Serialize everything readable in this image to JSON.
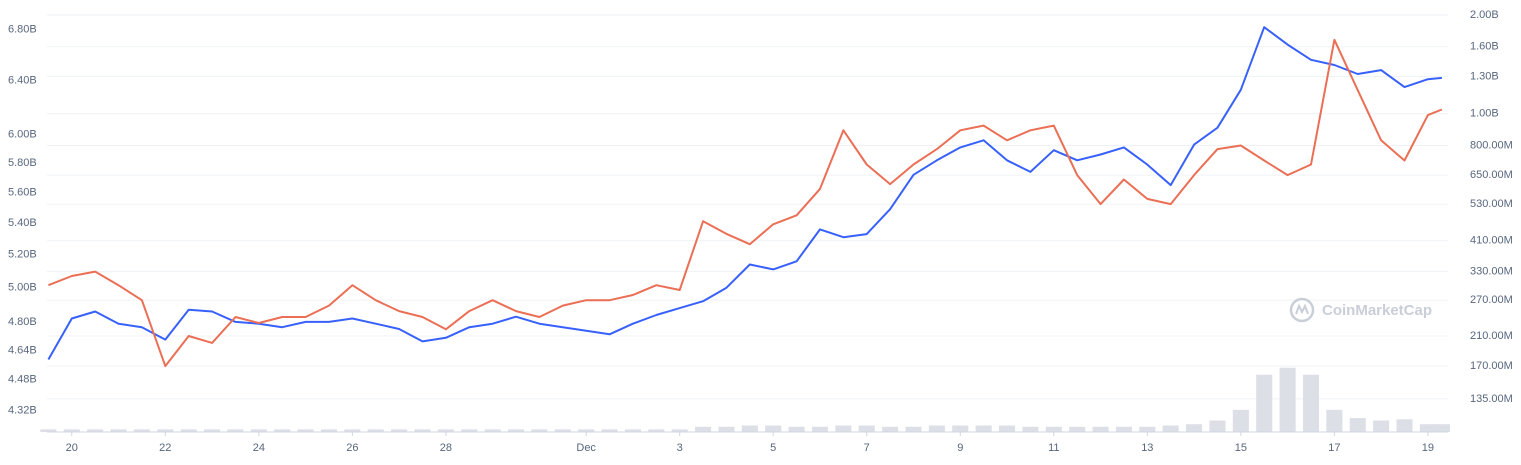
{
  "chart_data": {
    "type": "line",
    "log_scale": true,
    "grid": true,
    "watermark": "CoinMarketCap",
    "x": [
      19.5,
      20,
      20.5,
      21,
      21.5,
      22,
      22.5,
      23,
      23.5,
      24,
      24.5,
      25,
      25.5,
      26,
      26.5,
      27,
      27.5,
      28,
      28.5,
      29,
      29.5,
      30,
      30.5,
      31,
      31.5,
      32,
      32.5,
      33,
      33.5,
      34,
      34.5,
      35,
      35.5,
      36,
      36.5,
      37,
      37.5,
      38,
      38.5,
      39,
      39.5,
      40,
      40.5,
      41,
      41.5,
      42,
      42.5,
      43,
      43.5,
      44,
      44.5,
      45,
      45.5,
      46,
      46.5,
      47,
      47.5,
      48,
      48.5,
      49,
      49.3
    ],
    "xlim": [
      19.47,
      49.43
    ],
    "xticks": [
      {
        "value": 20,
        "label": "20"
      },
      {
        "value": 22,
        "label": "22"
      },
      {
        "value": 24,
        "label": "24"
      },
      {
        "value": 26,
        "label": "26"
      },
      {
        "value": 28,
        "label": "28"
      },
      {
        "value": 31,
        "label": "Dec"
      },
      {
        "value": 33,
        "label": "3"
      },
      {
        "value": 35,
        "label": "5"
      },
      {
        "value": 37,
        "label": "7"
      },
      {
        "value": 39,
        "label": "9"
      },
      {
        "value": 41,
        "label": "11"
      },
      {
        "value": 43,
        "label": "13"
      },
      {
        "value": 45,
        "label": "15"
      },
      {
        "value": 47,
        "label": "17"
      },
      {
        "value": 49,
        "label": "19"
      }
    ],
    "ylim": [
      4.21,
      6.92
    ],
    "yticks": [
      {
        "value": 6.8,
        "label": "6.80B"
      },
      {
        "value": 6.4,
        "label": "6.40B"
      },
      {
        "value": 6.0,
        "label": "6.00B"
      },
      {
        "value": 5.8,
        "label": "5.80B"
      },
      {
        "value": 5.6,
        "label": "5.60B"
      },
      {
        "value": 5.4,
        "label": "5.40B"
      },
      {
        "value": 5.2,
        "label": "5.20B"
      },
      {
        "value": 5.0,
        "label": "5.00B"
      },
      {
        "value": 4.8,
        "label": "4.80B"
      },
      {
        "value": 4.64,
        "label": "4.64B"
      },
      {
        "value": 4.48,
        "label": "4.48B"
      },
      {
        "value": 4.32,
        "label": "4.32B"
      }
    ],
    "y2lim": [
      0.107,
      2.0
    ],
    "y2ticks": [
      {
        "value": 2.0,
        "label": "2.00B"
      },
      {
        "value": 1.6,
        "label": "1.60B"
      },
      {
        "value": 1.3,
        "label": "1.30B"
      },
      {
        "value": 1.0,
        "label": "1.00B"
      },
      {
        "value": 0.8,
        "label": "800.00M"
      },
      {
        "value": 0.65,
        "label": "650.00M"
      },
      {
        "value": 0.53,
        "label": "530.00M"
      },
      {
        "value": 0.41,
        "label": "410.00M"
      },
      {
        "value": 0.33,
        "label": "330.00M"
      },
      {
        "value": 0.27,
        "label": "270.00M"
      },
      {
        "value": 0.21,
        "label": "210.00M"
      },
      {
        "value": 0.17,
        "label": "170.00M"
      },
      {
        "value": 0.135,
        "label": "135.00M"
      }
    ],
    "series": [
      {
        "type": "bar",
        "axis": "y2",
        "color": "#dcdfe6",
        "values": [
          0.109,
          0.109,
          0.109,
          0.109,
          0.109,
          0.109,
          0.109,
          0.109,
          0.109,
          0.109,
          0.109,
          0.109,
          0.109,
          0.109,
          0.109,
          0.109,
          0.109,
          0.109,
          0.109,
          0.109,
          0.109,
          0.109,
          0.109,
          0.109,
          0.109,
          0.109,
          0.109,
          0.109,
          0.111,
          0.111,
          0.112,
          0.112,
          0.111,
          0.111,
          0.112,
          0.112,
          0.111,
          0.111,
          0.112,
          0.112,
          0.112,
          0.112,
          0.111,
          0.111,
          0.111,
          0.111,
          0.111,
          0.111,
          0.112,
          0.113,
          0.116,
          0.125,
          0.16,
          0.168,
          0.16,
          0.125,
          0.118,
          0.116,
          0.117,
          0.113,
          0.113
        ]
      },
      {
        "axis": "y",
        "color": "#3861fb",
        "values": [
          4.59,
          4.82,
          4.86,
          4.79,
          4.77,
          4.7,
          4.87,
          4.86,
          4.8,
          4.79,
          4.77,
          4.8,
          4.8,
          4.82,
          4.79,
          4.76,
          4.69,
          4.71,
          4.77,
          4.79,
          4.83,
          4.79,
          4.77,
          4.75,
          4.73,
          4.79,
          4.84,
          4.88,
          4.92,
          5.0,
          5.14,
          5.11,
          5.16,
          5.36,
          5.31,
          5.33,
          5.49,
          5.72,
          5.82,
          5.91,
          5.96,
          5.82,
          5.74,
          5.89,
          5.82,
          5.86,
          5.91,
          5.79,
          5.65,
          5.93,
          6.05,
          6.33,
          6.82,
          6.68,
          6.56,
          6.52,
          6.45,
          6.48,
          6.35,
          6.41,
          6.42
        ]
      },
      {
        "axis": "y2",
        "color": "#ea6f55",
        "values": [
          0.3,
          0.32,
          0.33,
          0.3,
          0.27,
          0.17,
          0.21,
          0.2,
          0.24,
          0.23,
          0.24,
          0.24,
          0.26,
          0.3,
          0.27,
          0.25,
          0.24,
          0.22,
          0.25,
          0.27,
          0.25,
          0.24,
          0.26,
          0.27,
          0.27,
          0.28,
          0.3,
          0.29,
          0.47,
          0.43,
          0.4,
          0.46,
          0.49,
          0.59,
          0.89,
          0.7,
          0.61,
          0.7,
          0.78,
          0.89,
          0.92,
          0.83,
          0.89,
          0.92,
          0.65,
          0.53,
          0.63,
          0.55,
          0.53,
          0.65,
          0.78,
          0.8,
          0.72,
          0.65,
          0.7,
          1.68,
          1.18,
          0.83,
          0.72,
          0.99,
          1.03
        ]
      }
    ]
  }
}
